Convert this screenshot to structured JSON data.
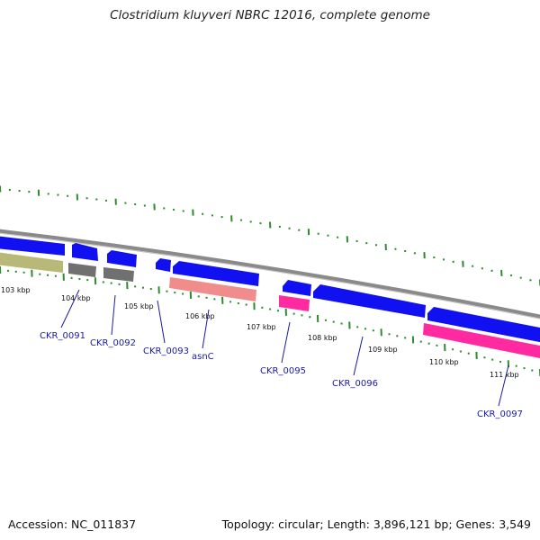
{
  "title": "Clostridium kluyveri NBRC 12016, complete genome",
  "footer": {
    "accession": "Accession: NC_011837",
    "topology": "Topology: circular; Length: 3,896,121 bp; Genes: 3,549"
  },
  "colors": {
    "backbone": "#8a8a8a",
    "forward_gene": "#1010f0",
    "gray_gene": "#707070",
    "olive_gene": "#b8b878",
    "salmon_gene": "#f08c8c",
    "magenta_gene": "#ff2aa0",
    "gc_marks": "#2e8b2e",
    "label_text": "#1a1aa6"
  },
  "scale_labels": [
    "103 kbp",
    "104 kbp",
    "105 kbp",
    "106 kbp",
    "107 kbp",
    "108 kbp",
    "109 kbp",
    "110 kbp",
    "111 kbp"
  ],
  "gene_labels": [
    "CKR_0091",
    "CKR_0092",
    "CKR_0093",
    "asnC",
    "CKR_0095",
    "CKR_0096",
    "CKR_0097"
  ]
}
